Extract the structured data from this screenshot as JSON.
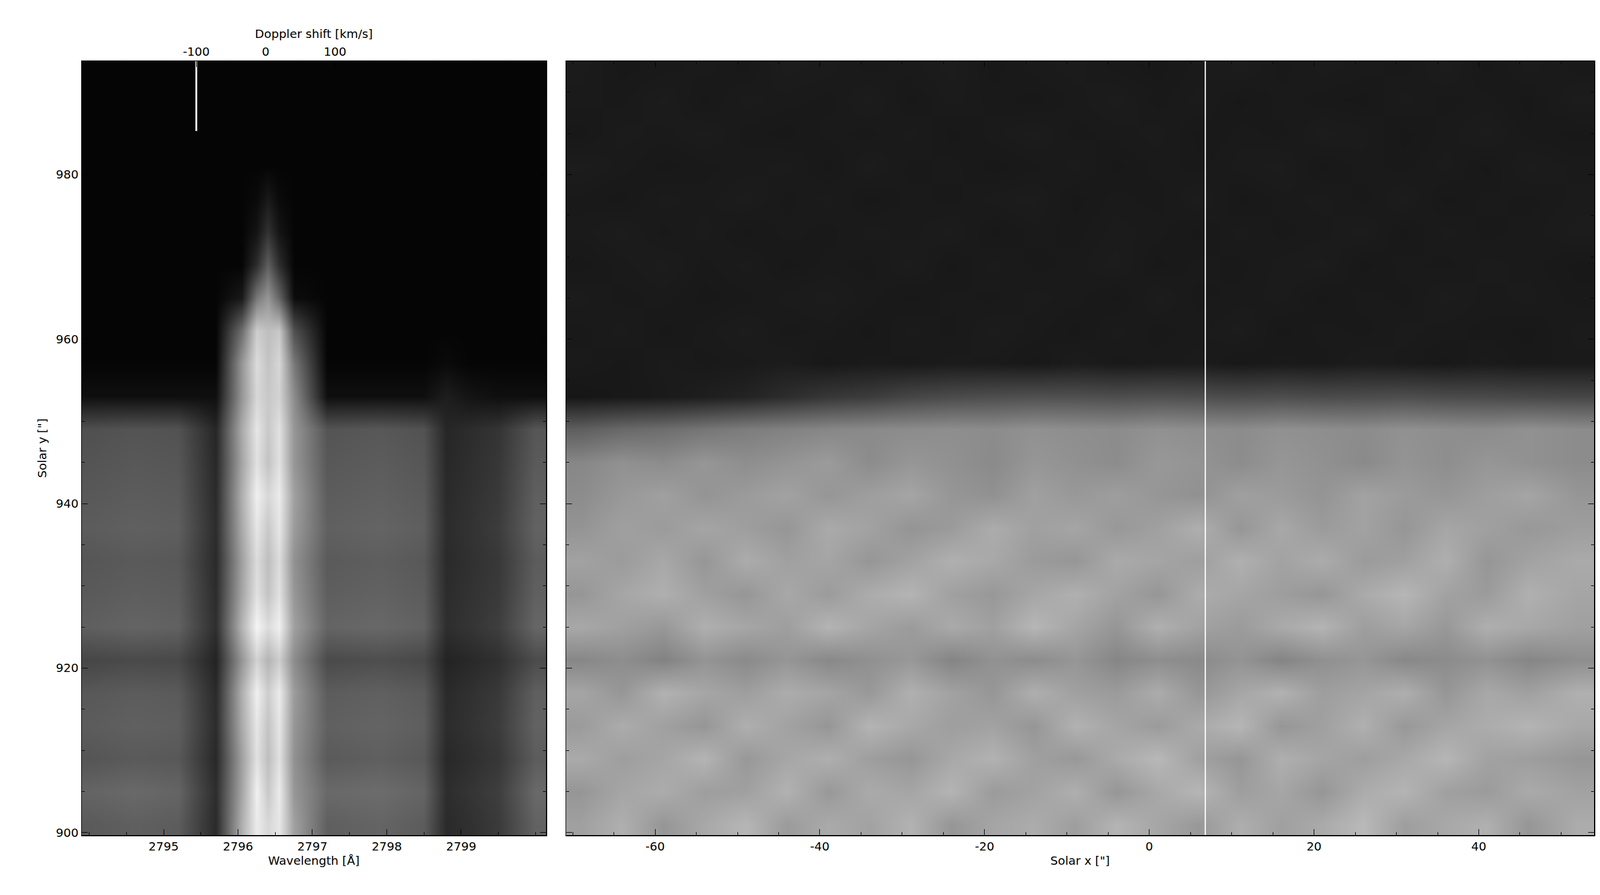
{
  "chart_data": [
    {
      "type": "heatmap",
      "xlabel": "Wavelength [Å]",
      "ylabel": "Solar y [\"]",
      "x": [
        2794.0,
        2794.6,
        2795.2,
        2795.7,
        2796.05,
        2796.25,
        2796.4,
        2796.55,
        2796.75,
        2797.2,
        2797.9,
        2798.5,
        2798.8,
        2799.1,
        2799.5,
        2800.0
      ],
      "y": [
        901,
        905,
        909,
        913,
        917,
        921,
        925,
        929,
        933,
        937,
        941,
        945,
        949,
        953,
        957,
        961,
        965,
        969,
        973,
        977,
        981,
        985,
        989,
        993
      ],
      "z": [
        [
          90,
          95,
          92,
          42,
          175,
          235,
          215,
          230,
          160,
          95,
          100,
          92,
          42,
          48,
          58,
          98
        ],
        [
          100,
          105,
          100,
          45,
          165,
          240,
          200,
          235,
          150,
          105,
          108,
          100,
          45,
          52,
          62,
          105
        ],
        [
          85,
          90,
          88,
          40,
          160,
          225,
          190,
          225,
          145,
          90,
          95,
          88,
          40,
          46,
          55,
          92
        ],
        [
          92,
          96,
          94,
          44,
          170,
          230,
          195,
          230,
          150,
          96,
          100,
          94,
          44,
          50,
          60,
          98
        ],
        [
          88,
          92,
          90,
          42,
          175,
          240,
          205,
          235,
          155,
          92,
          96,
          90,
          42,
          48,
          57,
          95
        ],
        [
          70,
          74,
          72,
          35,
          150,
          210,
          180,
          205,
          140,
          74,
          78,
          72,
          35,
          40,
          48,
          76
        ],
        [
          95,
          100,
          97,
          46,
          180,
          245,
          220,
          240,
          160,
          100,
          104,
          97,
          46,
          52,
          62,
          102
        ],
        [
          90,
          94,
          92,
          44,
          165,
          225,
          195,
          225,
          150,
          94,
          98,
          92,
          44,
          50,
          58,
          96
        ],
        [
          86,
          90,
          88,
          42,
          160,
          220,
          190,
          220,
          145,
          90,
          94,
          88,
          42,
          48,
          56,
          92
        ],
        [
          92,
          96,
          94,
          44,
          170,
          230,
          200,
          230,
          155,
          96,
          100,
          94,
          44,
          50,
          60,
          98
        ],
        [
          88,
          92,
          90,
          42,
          175,
          240,
          215,
          235,
          160,
          92,
          96,
          90,
          42,
          48,
          57,
          95
        ],
        [
          84,
          88,
          86,
          40,
          165,
          225,
          195,
          225,
          150,
          88,
          92,
          86,
          40,
          46,
          55,
          90
        ],
        [
          80,
          84,
          82,
          38,
          170,
          230,
          200,
          225,
          150,
          84,
          88,
          82,
          38,
          44,
          52,
          86
        ],
        [
          15,
          15,
          15,
          15,
          150,
          215,
          200,
          210,
          140,
          15,
          15,
          15,
          30,
          20,
          15,
          15
        ],
        [
          5,
          5,
          5,
          5,
          150,
          220,
          195,
          215,
          120,
          5,
          5,
          5,
          10,
          5,
          5,
          5
        ],
        [
          5,
          5,
          5,
          5,
          110,
          205,
          190,
          200,
          80,
          5,
          5,
          5,
          5,
          5,
          5,
          5
        ],
        [
          5,
          5,
          5,
          5,
          25,
          120,
          150,
          100,
          12,
          5,
          5,
          5,
          5,
          5,
          5,
          5
        ],
        [
          5,
          5,
          5,
          5,
          5,
          45,
          95,
          45,
          5,
          5,
          5,
          5,
          5,
          5,
          5,
          5
        ],
        [
          5,
          5,
          5,
          5,
          5,
          20,
          50,
          20,
          5,
          5,
          5,
          5,
          5,
          5,
          5,
          5
        ],
        [
          5,
          5,
          5,
          5,
          5,
          10,
          25,
          10,
          5,
          5,
          5,
          5,
          5,
          5,
          5,
          5
        ],
        [
          5,
          5,
          5,
          5,
          5,
          5,
          5,
          5,
          5,
          5,
          5,
          5,
          5,
          5,
          5,
          5
        ],
        [
          5,
          5,
          5,
          5,
          5,
          5,
          5,
          5,
          5,
          5,
          5,
          5,
          5,
          5,
          5,
          5
        ],
        [
          5,
          5,
          5,
          5,
          5,
          5,
          5,
          5,
          5,
          5,
          5,
          5,
          5,
          5,
          5,
          5
        ],
        [
          5,
          5,
          5,
          5,
          5,
          5,
          5,
          5,
          5,
          5,
          5,
          5,
          5,
          5,
          5,
          5
        ]
      ],
      "zlim": [
        0,
        255
      ],
      "xlim": [
        2793.9,
        2800.14
      ],
      "xticks": [
        2795,
        2796,
        2797,
        2798,
        2799
      ],
      "ylim": [
        899.7,
        993.8
      ],
      "yticks": [
        900,
        920,
        940,
        960,
        980
      ],
      "top_axis": {
        "label": "Doppler shift [km/s]",
        "xlim": [
          -265,
          404
        ],
        "xticks": [
          -100,
          0,
          100
        ]
      },
      "marker_line": {
        "x": -100,
        "y": [
          985.3,
          993.8
        ]
      }
    },
    {
      "type": "heatmap",
      "xlabel": "Solar x [\"]",
      "x": [
        -69,
        -64,
        -59,
        -54,
        -49,
        -44,
        -39,
        -34,
        -29,
        -24,
        -19,
        -14,
        -9,
        -4,
        1,
        6,
        11,
        16,
        21,
        26,
        31,
        36,
        41,
        46,
        52
      ],
      "y": [
        901,
        905,
        909,
        913,
        917,
        921,
        925,
        929,
        933,
        937,
        941,
        945,
        949,
        953,
        957,
        961,
        965,
        969,
        973,
        977,
        981,
        985,
        989,
        993
      ],
      "z": [
        [
          160,
          175,
          150,
          168,
          182,
          155,
          170,
          162,
          178,
          150,
          165,
          172,
          158,
          180,
          166,
          152,
          174,
          160,
          170,
          185,
          158,
          168,
          176,
          150,
          172
        ],
        [
          150,
          165,
          172,
          158,
          160,
          178,
          152,
          170,
          165,
          180,
          155,
          162,
          175,
          150,
          168,
          182,
          158,
          166,
          150,
          172,
          180,
          160,
          155,
          170,
          162
        ],
        [
          170,
          158,
          165,
          180,
          152,
          166,
          175,
          158,
          150,
          168,
          178,
          160,
          152,
          170,
          184,
          160,
          150,
          175,
          165,
          158,
          168,
          182,
          162,
          158,
          150
        ],
        [
          155,
          172,
          160,
          150,
          175,
          162,
          150,
          180,
          168,
          158,
          162,
          150,
          178,
          165,
          155,
          170,
          182,
          150,
          160,
          176,
          152,
          165,
          172,
          180,
          168
        ],
        [
          165,
          150,
          178,
          166,
          158,
          172,
          165,
          152,
          176,
          162,
          150,
          175,
          160,
          155,
          172,
          150,
          166,
          178,
          158,
          164,
          175,
          150,
          168,
          160,
          176
        ],
        [
          135,
          142,
          130,
          148,
          138,
          150,
          136,
          144,
          152,
          132,
          146,
          140,
          150,
          134,
          142,
          138,
          148,
          132,
          144,
          150,
          136,
          140,
          146,
          134,
          142
        ],
        [
          168,
          160,
          152,
          175,
          166,
          158,
          180,
          165,
          155,
          170,
          160,
          182,
          165,
          150,
          176,
          162,
          155,
          170,
          180,
          158,
          166,
          152,
          175,
          168,
          160
        ],
        [
          150,
          166,
          175,
          160,
          150,
          168,
          155,
          172,
          180,
          160,
          152,
          166,
          176,
          162,
          150,
          172,
          165,
          158,
          150,
          170,
          182,
          162,
          155,
          176,
          165
        ],
        [
          162,
          155,
          168,
          150,
          172,
          160,
          165,
          150,
          162,
          176,
          168,
          155,
          150,
          170,
          165,
          158,
          176,
          162,
          172,
          155,
          160,
          175,
          150,
          162,
          170
        ],
        [
          148,
          160,
          155,
          165,
          158,
          150,
          170,
          162,
          148,
          155,
          172,
          160,
          165,
          152,
          160,
          175,
          150,
          168,
          155,
          162,
          150,
          166,
          160,
          152,
          158
        ],
        [
          140,
          152,
          160,
          148,
          155,
          162,
          150,
          158,
          165,
          150,
          145,
          160,
          152,
          158,
          150,
          145,
          160,
          155,
          148,
          162,
          155,
          150,
          158,
          165,
          150
        ],
        [
          135,
          145,
          140,
          150,
          142,
          148,
          155,
          140,
          150,
          145,
          138,
          150,
          145,
          140,
          152,
          148,
          140,
          150,
          145,
          138,
          148,
          142,
          150,
          145,
          140
        ],
        [
          95,
          105,
          110,
          118,
          125,
          130,
          135,
          138,
          140,
          142,
          140,
          145,
          142,
          140,
          145,
          142,
          140,
          145,
          142,
          140,
          145,
          142,
          140,
          145,
          140
        ],
        [
          22,
          24,
          26,
          30,
          35,
          45,
          55,
          60,
          70,
          75,
          78,
          80,
          80,
          78,
          80,
          78,
          76,
          78,
          75,
          76,
          78,
          75,
          74,
          72,
          70
        ],
        [
          26,
          24,
          27,
          25,
          26,
          28,
          24,
          26,
          25,
          27,
          26,
          24,
          28,
          25,
          26,
          27,
          24,
          26,
          25,
          28,
          26,
          24,
          27,
          25,
          26
        ],
        [
          25,
          27,
          24,
          26,
          28,
          25,
          26,
          24,
          27,
          25,
          28,
          26,
          24,
          27,
          25,
          26,
          28,
          24,
          26,
          25,
          27,
          26,
          25,
          24,
          27
        ],
        [
          27,
          25,
          26,
          24,
          25,
          27,
          28,
          26,
          24,
          26,
          25,
          27,
          26,
          24,
          28,
          25,
          26,
          27,
          24,
          26,
          25,
          28,
          26,
          27,
          25
        ],
        [
          24,
          26,
          28,
          25,
          27,
          24,
          26,
          25,
          28,
          24,
          27,
          25,
          26,
          28,
          24,
          26,
          25,
          27,
          28,
          24,
          26,
          25,
          27,
          26,
          24
        ],
        [
          26,
          28,
          25,
          27,
          24,
          26,
          25,
          27,
          26,
          28,
          24,
          26,
          25,
          27,
          26,
          24,
          27,
          25,
          26,
          28,
          24,
          27,
          25,
          26,
          28
        ],
        [
          25,
          24,
          27,
          26,
          28,
          25,
          27,
          24,
          26,
          25,
          27,
          28,
          24,
          26,
          25,
          28,
          24,
          26,
          27,
          25,
          28,
          24,
          26,
          25,
          27
        ],
        [
          28,
          26,
          24,
          25,
          26,
          27,
          24,
          28,
          25,
          26,
          24,
          25,
          27,
          24,
          26,
          25,
          27,
          28,
          24,
          26,
          25,
          27,
          24,
          28,
          26
        ],
        [
          24,
          27,
          26,
          28,
          25,
          24,
          26,
          25,
          27,
          24,
          26,
          28,
          25,
          26,
          27,
          24,
          26,
          25,
          28,
          27,
          24,
          26,
          28,
          25,
          24
        ],
        [
          26,
          25,
          28,
          24,
          27,
          26,
          25,
          28,
          24,
          27,
          25,
          24,
          26,
          28,
          25,
          27,
          24,
          26,
          25,
          24,
          27,
          25,
          26,
          24,
          28
        ],
        [
          27,
          24,
          25,
          26,
          24,
          28,
          27,
          25,
          26,
          28,
          24,
          26,
          27,
          25,
          24,
          26,
          28,
          25,
          27,
          26,
          25,
          28,
          24,
          27,
          25
        ]
      ],
      "zlim": [
        0,
        255
      ],
      "xlim": [
        -70.8,
        54.0
      ],
      "xticks": [
        -60,
        -40,
        -20,
        0,
        20,
        40
      ],
      "ylim": [
        899.7,
        993.8
      ],
      "yticks": [
        900,
        920,
        940,
        960,
        980
      ],
      "tick_labels": "x",
      "slit_line": {
        "x": 6.8
      }
    }
  ]
}
